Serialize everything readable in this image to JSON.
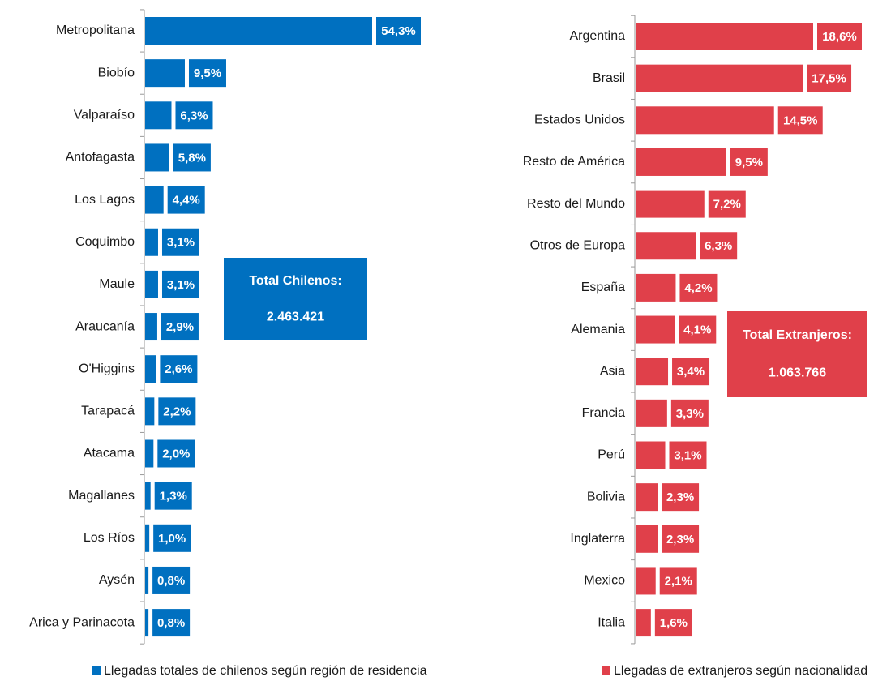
{
  "chart_data": [
    {
      "type": "bar",
      "orientation": "horizontal",
      "categories": [
        "Metropolitana",
        "Biobío",
        "Valparaíso",
        "Antofagasta",
        "Los Lagos",
        "Coquimbo",
        "Maule",
        "Araucanía",
        "O'Higgins",
        "Tarapacá",
        "Atacama",
        "Magallanes",
        "Los Ríos",
        "Aysén",
        "Arica y Parinacota"
      ],
      "series": [
        {
          "name": "Llegadas totales de chilenos según región de residencia",
          "color": "#0070c0",
          "values": [
            54.3,
            9.5,
            6.3,
            5.8,
            4.4,
            3.1,
            3.1,
            2.9,
            2.6,
            2.2,
            2.0,
            1.3,
            1.0,
            0.8,
            0.8
          ],
          "value_labels": [
            "54,3%",
            "9,5%",
            "6,3%",
            "5,8%",
            "4,4%",
            "3,1%",
            "3,1%",
            "2,9%",
            "2,6%",
            "2,2%",
            "2,0%",
            "1,3%",
            "1,0%",
            "0,8%",
            "0,8%"
          ]
        }
      ],
      "annotations": [
        "Total Chilenos:",
        "2.463.421"
      ]
    },
    {
      "type": "bar",
      "orientation": "horizontal",
      "categories": [
        "Argentina",
        "Brasil",
        "Estados Unidos",
        "Resto de América",
        "Resto del Mundo",
        "Otros de Europa",
        "España",
        "Alemania",
        "Asia",
        "Francia",
        "Perú",
        "Bolivia",
        "Inglaterra",
        "Mexico",
        "Italia"
      ],
      "series": [
        {
          "name": "Llegadas de extranjeros según nacionalidad",
          "color": "#e0404a",
          "values": [
            18.6,
            17.5,
            14.5,
            9.5,
            7.2,
            6.3,
            4.2,
            4.1,
            3.4,
            3.3,
            3.1,
            2.3,
            2.3,
            2.1,
            1.6
          ],
          "value_labels": [
            "18,6%",
            "17,5%",
            "14,5%",
            "9,5%",
            "7,2%",
            "6,3%",
            "4,2%",
            "4,1%",
            "3,4%",
            "3,3%",
            "3,1%",
            "2,3%",
            "2,3%",
            "2,1%",
            "1,6%"
          ]
        }
      ],
      "annotations": [
        "Total Extranjeros:",
        "1.063.766"
      ]
    }
  ]
}
